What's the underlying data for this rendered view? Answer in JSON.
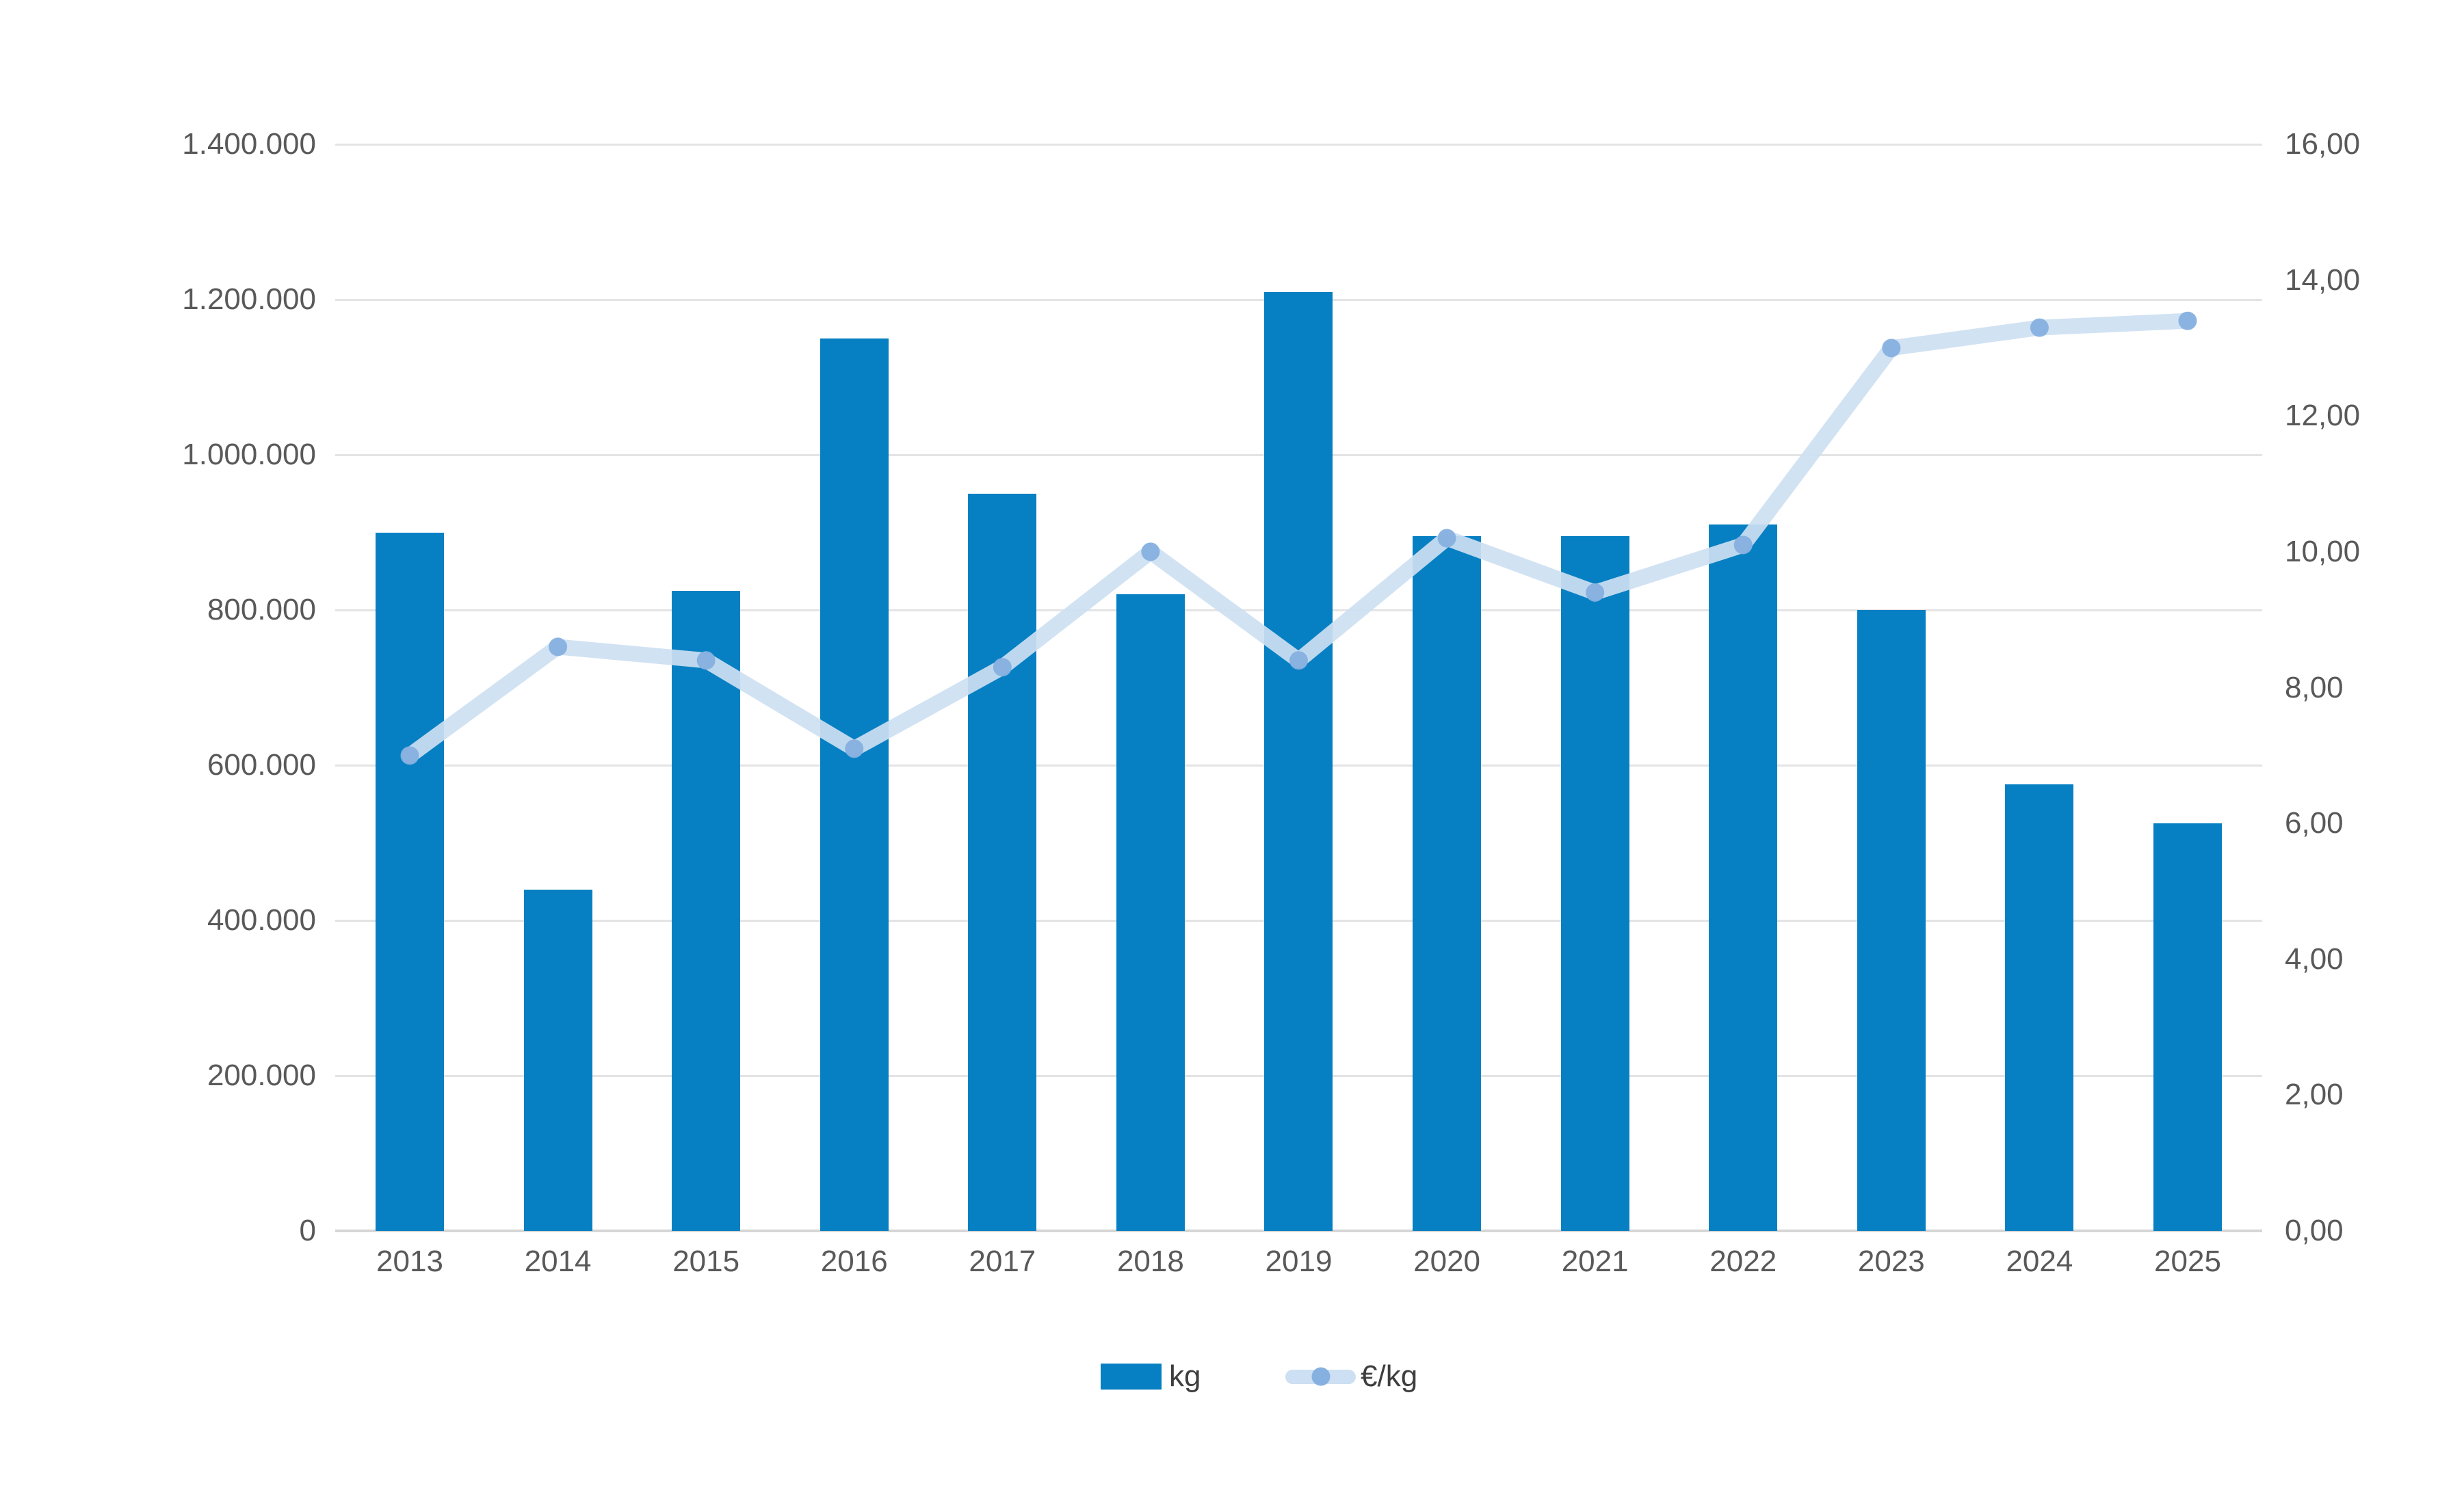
{
  "colors": {
    "background": "#ffffff",
    "bar": "#0780c3",
    "line": "#cddff2",
    "point": "#86b0df",
    "grid": "#e4e4e4",
    "axis_baseline": "#d6d6d6",
    "tick_text": "#595959",
    "legend_text": "#3e3e3e"
  },
  "legend": {
    "items": [
      {
        "label": "kg",
        "marker": "bar-swatch"
      },
      {
        "label": "€/kg",
        "marker": "line-dot-swatch"
      }
    ]
  },
  "chart_data": {
    "type": "combo-bar-line",
    "title": "",
    "categories": [
      "2013",
      "2014",
      "2015",
      "2016",
      "2017",
      "2018",
      "2019",
      "2020",
      "2021",
      "2022",
      "2023",
      "2024",
      "2025"
    ],
    "series": [
      {
        "name": "kg",
        "type": "bar",
        "axis": "left",
        "values": [
          900000,
          440000,
          825000,
          1150000,
          950000,
          820000,
          1210000,
          895000,
          895000,
          910000,
          800000,
          575000,
          525000
        ]
      },
      {
        "name": "€/kg",
        "type": "line",
        "axis": "right",
        "values": [
          7.0,
          8.6,
          8.4,
          7.1,
          8.3,
          10.0,
          8.4,
          10.2,
          9.4,
          10.1,
          13.0,
          13.3,
          13.4
        ]
      }
    ],
    "left_axis": {
      "min": 0,
      "max": 1400000,
      "tick_values": [
        1400000,
        1200000,
        1000000,
        800000,
        600000,
        400000,
        200000,
        0
      ],
      "tick_labels": [
        "1.400.000",
        "1.200.000",
        "1.000.000",
        "800.000",
        "600.000",
        "400.000",
        "200.000",
        "0"
      ]
    },
    "right_axis": {
      "min": 0,
      "max": 16,
      "tick_values": [
        16,
        14,
        12,
        10,
        8,
        6,
        4,
        2,
        0
      ],
      "tick_labels": [
        "16,00",
        "14,00",
        "12,00",
        "10,00",
        "8,00",
        "6,00",
        "4,00",
        "2,00",
        "0,00"
      ]
    },
    "grid": true,
    "legend_position": "bottom-center"
  }
}
